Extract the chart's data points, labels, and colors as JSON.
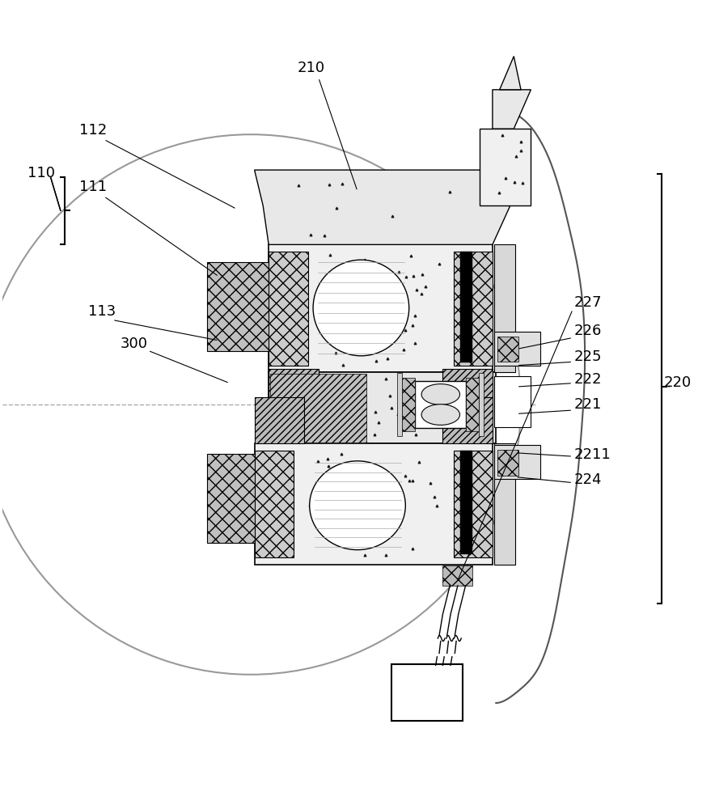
{
  "bg_color": "#ffffff",
  "line_color": "#000000",
  "figsize": [
    8.84,
    10.0
  ],
  "dpi": 100
}
